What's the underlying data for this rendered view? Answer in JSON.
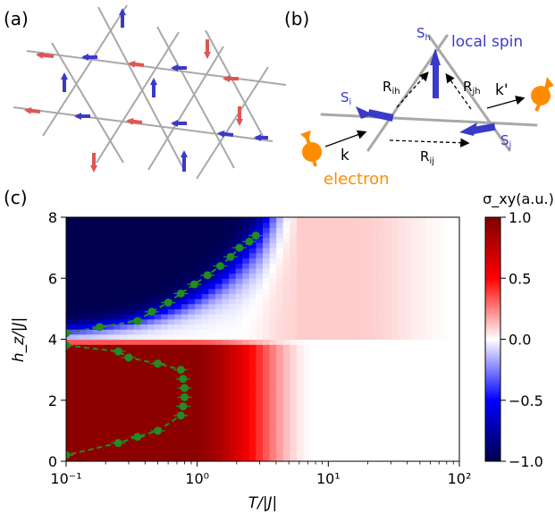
{
  "panel_a": {
    "label": "(a)"
  },
  "panel_b": {
    "label": "(b)",
    "s_h": "S",
    "s_h_sub": "h",
    "local_spin": "local spin",
    "s_i": "S",
    "s_i_sub": "i",
    "s_j": "S",
    "s_j_sub": "j",
    "r_ih": "R",
    "r_ih_sub": "ih",
    "r_jh": "R",
    "r_jh_sub": "jh",
    "r_ij": "R",
    "r_ij_sub": "ij",
    "k": "k",
    "k_prime": "k'",
    "electron": "electron",
    "colors": {
      "spin": "#3333cc",
      "electron": "#ff8c00",
      "lattice": "#a8a8a8",
      "spin_red": "#e05555"
    }
  },
  "panel_c": {
    "label": "(c)"
  },
  "chart_data": {
    "type": "heatmap",
    "xlabel": "T/|J|",
    "ylabel": "h_z/|J|",
    "x_scale": "log",
    "xlim": [
      0.1,
      100
    ],
    "ylim": [
      0,
      8
    ],
    "x_tick_labels": [
      "10⁻¹",
      "10⁰",
      "10¹",
      "10²"
    ],
    "y_tick_labels": [
      "0",
      "2",
      "4",
      "6",
      "8"
    ],
    "colorbar": {
      "title": "σ_xy(a.u.)",
      "range": [
        -1.0,
        1.0
      ],
      "tick_labels": [
        "1.0",
        "0.5",
        "0.0",
        "−0.5",
        "−1.0"
      ],
      "colormap": "seismic"
    },
    "series": [
      {
        "line": "upper_boundary",
        "color": "#228b22",
        "x": [
          0.1,
          0.18,
          0.35,
          0.45,
          0.6,
          0.75,
          0.95,
          1.2,
          1.5,
          1.8,
          2.1,
          2.5,
          2.8
        ],
        "y": [
          4.2,
          4.4,
          4.6,
          4.9,
          5.2,
          5.5,
          5.8,
          6.1,
          6.4,
          6.7,
          7.0,
          7.2,
          7.4
        ]
      },
      {
        "line": "lower_boundary",
        "color": "#228b22",
        "x": [
          0.1,
          0.25,
          0.3,
          0.5,
          0.75,
          0.78,
          0.8,
          0.8,
          0.78,
          0.75,
          0.5,
          0.35,
          0.25,
          0.1
        ],
        "y": [
          3.8,
          3.6,
          3.4,
          3.2,
          3.0,
          2.7,
          2.4,
          2.1,
          1.8,
          1.5,
          1.0,
          0.8,
          0.6,
          0.2
        ]
      }
    ]
  }
}
